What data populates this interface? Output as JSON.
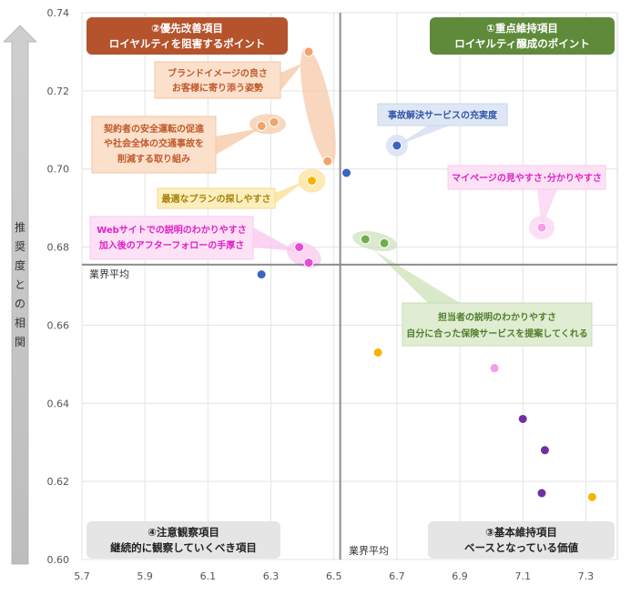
{
  "chart_data": {
    "type": "scatter",
    "ylabel": "推奨度との相関",
    "xlim": [
      5.7,
      7.4
    ],
    "ylim": [
      0.6,
      0.74
    ],
    "x_ticks": [
      "5.7",
      "5.9",
      "6.1",
      "6.3",
      "6.5",
      "6.7",
      "6.9",
      "7.1",
      "7.3"
    ],
    "y_ticks": [
      "0.60",
      "0.62",
      "0.64",
      "0.66",
      "0.68",
      "0.70",
      "0.72",
      "0.74"
    ],
    "avg_x": 6.52,
    "avg_y": 0.6755,
    "avg_label_h": "業界平均",
    "avg_label_v": "業界平均",
    "grid": true,
    "quadrants": [
      {
        "key": "q2",
        "line1": "②優先改善項目",
        "line2": "ロイヤルティを阻害するポイント",
        "bg": "#b5532d",
        "fg": "#ffffff"
      },
      {
        "key": "q1",
        "line1": "①重点維持項目",
        "line2": "ロイヤルティ醸成のポイント",
        "bg": "#5e8a3a",
        "fg": "#ffffff"
      },
      {
        "key": "q4",
        "line1": "④注意観察項目",
        "line2": "継続的に観察していくべき項目",
        "bg": "#e5e5e5",
        "fg": "#222222"
      },
      {
        "key": "q3",
        "line1": "③基本維持項目",
        "line2": "ベースとなっている価値",
        "bg": "#e5e5e5",
        "fg": "#222222"
      }
    ],
    "points": [
      {
        "x": 6.42,
        "y": 0.73,
        "color": "#f0a36c"
      },
      {
        "x": 6.48,
        "y": 0.702,
        "color": "#f0a36c"
      },
      {
        "x": 6.27,
        "y": 0.711,
        "color": "#f0a36c"
      },
      {
        "x": 6.31,
        "y": 0.712,
        "color": "#f0a36c"
      },
      {
        "x": 6.43,
        "y": 0.697,
        "color": "#f5b400"
      },
      {
        "x": 6.39,
        "y": 0.68,
        "color": "#e64bd8"
      },
      {
        "x": 6.42,
        "y": 0.676,
        "color": "#e64bd8"
      },
      {
        "x": 6.54,
        "y": 0.699,
        "color": "#3b64c4"
      },
      {
        "x": 6.7,
        "y": 0.706,
        "color": "#3b64c4"
      },
      {
        "x": 6.27,
        "y": 0.673,
        "color": "#3b64c4"
      },
      {
        "x": 7.16,
        "y": 0.685,
        "color": "#f79ce8"
      },
      {
        "x": 6.6,
        "y": 0.682,
        "color": "#72ad4e"
      },
      {
        "x": 6.66,
        "y": 0.681,
        "color": "#72ad4e"
      },
      {
        "x": 6.64,
        "y": 0.653,
        "color": "#f5b400"
      },
      {
        "x": 7.01,
        "y": 0.649,
        "color": "#f79ce8"
      },
      {
        "x": 7.1,
        "y": 0.636,
        "color": "#7030a0"
      },
      {
        "x": 7.17,
        "y": 0.628,
        "color": "#7030a0"
      },
      {
        "x": 7.16,
        "y": 0.617,
        "color": "#7030a0"
      },
      {
        "x": 7.32,
        "y": 0.616,
        "color": "#f5b400"
      }
    ],
    "annotations": [
      {
        "key": "brand",
        "lines": [
          "ブランドイメージの良さ",
          "お客様に寄り添う姿勢"
        ],
        "text_color": "#c0592a",
        "fill": "#fbe0cc",
        "stroke": "#f5c6a5"
      },
      {
        "key": "safety",
        "lines": [
          "契約者の安全運転の促進",
          "や社会全体の交通事故を",
          "削減する取り組み"
        ],
        "text_color": "#c0592a",
        "fill": "#fbe0cc",
        "stroke": "#f5c6a5"
      },
      {
        "key": "plan",
        "lines": [
          "最適なプランの探しやすさ"
        ],
        "text_color": "#a8820a",
        "fill": "#fdeebe",
        "stroke": "#f7d98a"
      },
      {
        "key": "web",
        "lines": [
          "Webサイトでの説明のわかりやすさ",
          "加入後のアフターフォローの手厚さ"
        ],
        "text_color": "#e020c8",
        "fill": "#fde2f6",
        "stroke": "#f8c8ee"
      },
      {
        "key": "accident",
        "lines": [
          "事故解決サービスの充実度"
        ],
        "text_color": "#3256a8",
        "fill": "#dfe7f5",
        "stroke": "#c9d6ee"
      },
      {
        "key": "mypage",
        "lines": [
          "マイページの見やすさ･分かりやすさ"
        ],
        "text_color": "#e020c8",
        "fill": "#fde2f6",
        "stroke": "#f8c8ee"
      },
      {
        "key": "staff",
        "lines": [
          "担当者の説明のわかりやすさ",
          "自分に合った保険サービスを提案してくれる"
        ],
        "text_color": "#4f7f2c",
        "fill": "#e0edd3",
        "stroke": "#c9ddb5"
      }
    ]
  }
}
